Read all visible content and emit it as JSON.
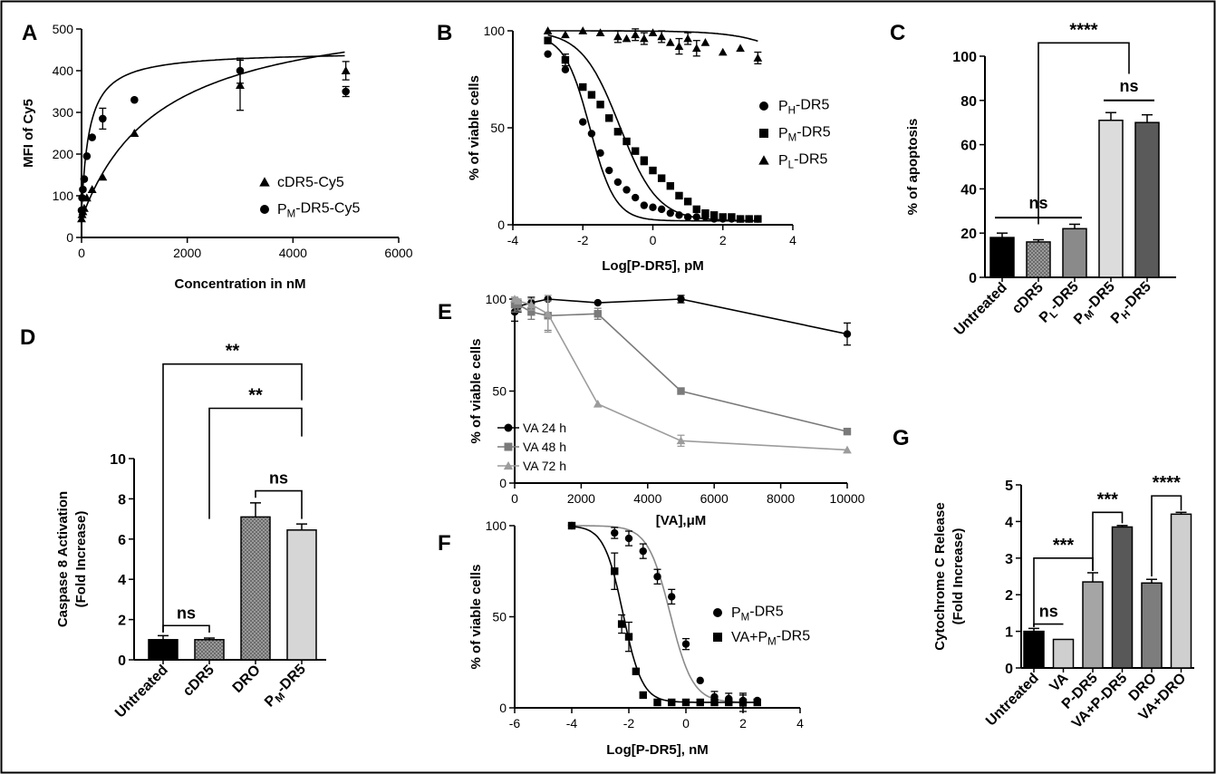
{
  "chart_data": [
    {
      "id": "A",
      "type": "scatter",
      "panel_letter": "A",
      "xlabel": "Concentration in nM",
      "ylabel": "MFI of Cy5",
      "xlim": [
        0,
        6000
      ],
      "ylim": [
        0,
        500
      ],
      "xticks": [
        0,
        2000,
        4000,
        6000
      ],
      "yticks": [
        0,
        100,
        200,
        300,
        400,
        500
      ],
      "legend_position": "right-middle",
      "series": [
        {
          "name": "cDR5-Cy5",
          "marker": "triangle",
          "x": [
            0,
            10,
            25,
            50,
            100,
            200,
            400,
            1000,
            3000,
            5000
          ],
          "y": [
            45,
            55,
            62,
            70,
            95,
            115,
            145,
            250,
            365,
            400
          ],
          "err": [
            0,
            0,
            0,
            0,
            0,
            0,
            0,
            0,
            60,
            22
          ],
          "fit": {
            "model": "one-site",
            "bmax": 520,
            "kd": 1500
          }
        },
        {
          "name": "PM-DR5-Cy5",
          "label_main": "P",
          "label_sub": "M",
          "label_rest": "-DR5-Cy5",
          "marker": "circle",
          "x": [
            0,
            10,
            25,
            50,
            100,
            200,
            400,
            1000,
            3000,
            5000
          ],
          "y": [
            65,
            95,
            115,
            140,
            195,
            240,
            285,
            330,
            400,
            350
          ],
          "err": [
            0,
            0,
            0,
            0,
            0,
            0,
            25,
            0,
            30,
            12
          ],
          "fit": {
            "model": "one-site",
            "bmax": 382,
            "kd": 150
          }
        }
      ]
    },
    {
      "id": "B",
      "type": "scatter",
      "panel_letter": "B",
      "xlabel": "Log[P-DR5], pM",
      "ylabel": "% of viable cells",
      "xlim": [
        -4,
        4
      ],
      "ylim": [
        0,
        100
      ],
      "xticks": [
        -4,
        -2,
        0,
        2,
        4
      ],
      "yticks": [
        0,
        50,
        100
      ],
      "legend_position": "right",
      "series": [
        {
          "name": "PH-DR5",
          "label_main": "P",
          "label_sub": "H",
          "label_rest": "-DR5",
          "marker": "circle",
          "x": [
            -3,
            -2.5,
            -2,
            -1.75,
            -1.5,
            -1.25,
            -1,
            -0.75,
            -0.5,
            -0.25,
            0,
            0.25,
            0.5,
            0.75,
            1,
            1.25,
            1.5,
            1.75,
            2,
            2.25,
            2.5,
            2.75,
            3
          ],
          "y": [
            88,
            80,
            53,
            47,
            37,
            28,
            22,
            18,
            14,
            10,
            9,
            8,
            6,
            5,
            4,
            4,
            4,
            3,
            3,
            3,
            3,
            3,
            3
          ],
          "fit": {
            "top": 98,
            "bottom": 2,
            "logec50": -1.8,
            "hill": 1.2
          }
        },
        {
          "name": "PM-DR5",
          "label_main": "P",
          "label_sub": "M",
          "label_rest": "-DR5",
          "marker": "square",
          "x": [
            -3,
            -2.5,
            -2,
            -1.75,
            -1.5,
            -1.25,
            -1,
            -0.75,
            -0.5,
            -0.25,
            0,
            0.25,
            0.5,
            0.75,
            1,
            1.25,
            1.5,
            1.75,
            2,
            2.25,
            2.5,
            2.75,
            3
          ],
          "y": [
            95,
            85,
            71,
            67,
            62,
            55,
            48,
            43,
            38,
            33,
            28,
            24,
            20,
            15,
            12,
            8,
            6,
            5,
            4,
            4,
            3,
            3,
            3
          ],
          "err": [
            0,
            3,
            0,
            0,
            0,
            0,
            0,
            0,
            0,
            2,
            0,
            0,
            0,
            0,
            0,
            0,
            0,
            0,
            0,
            0,
            0,
            0,
            0
          ],
          "fit": {
            "top": 100,
            "bottom": 2,
            "logec50": -0.95,
            "hill": 0.8
          }
        },
        {
          "name": "PL-DR5",
          "label_main": "P",
          "label_sub": "L",
          "label_rest": "-DR5",
          "marker": "triangle",
          "x": [
            -3,
            -2.5,
            -2,
            -1.5,
            -1,
            -0.75,
            -0.5,
            -0.25,
            0,
            0.25,
            0.5,
            0.75,
            1,
            1.25,
            1.5,
            2,
            2.5,
            3
          ],
          "y": [
            100,
            98,
            100,
            99,
            97,
            96,
            98,
            96,
            99,
            97,
            94,
            92,
            96,
            91,
            94,
            89,
            91,
            86
          ],
          "err": [
            0,
            0,
            0,
            0,
            3,
            0,
            3,
            3,
            0,
            3,
            0,
            4,
            3,
            4,
            0,
            0,
            0,
            3
          ],
          "fit": {
            "top": 100,
            "bottom": 0,
            "logec50": 5.5,
            "hill": 0.5
          }
        }
      ]
    },
    {
      "id": "C",
      "type": "bar",
      "panel_letter": "C",
      "ylabel": "% of apoptosis",
      "ylim": [
        0,
        100
      ],
      "yticks": [
        0,
        20,
        40,
        60,
        80,
        100
      ],
      "categories": [
        {
          "main": "Untreated",
          "sub": "",
          "rest": ""
        },
        {
          "main": "cDR5",
          "sub": "",
          "rest": ""
        },
        {
          "main": "P",
          "sub": "L",
          "rest": "-DR5"
        },
        {
          "main": "P",
          "sub": "M",
          "rest": "-DR5"
        },
        {
          "main": "P",
          "sub": "H",
          "rest": "-DR5"
        }
      ],
      "values": [
        18,
        16,
        22,
        71,
        70
      ],
      "errors": [
        2,
        1,
        2,
        3.5,
        3.5
      ],
      "colors": [
        "#000000",
        "#5f5f5f",
        "#8a8a8a",
        "#dcdcdc",
        "#5a5a5a"
      ],
      "hatch": [
        false,
        true,
        false,
        false,
        false
      ],
      "annotations": [
        {
          "text": "ns",
          "type": "line",
          "from": 0,
          "to": 2,
          "y": 27
        },
        {
          "text": "ns",
          "type": "line",
          "from": 3,
          "to": 4,
          "y": 80
        },
        {
          "text": "****",
          "type": "bracket",
          "from": 1,
          "to": 3.5,
          "y": 106,
          "left_drop": 24,
          "right_drop": 92
        }
      ]
    },
    {
      "id": "D",
      "type": "bar",
      "panel_letter": "D",
      "ylabel": "Caspase 8 Activation",
      "ylabel2": "(Fold Increase)",
      "ylim": [
        0,
        10
      ],
      "yticks": [
        0,
        2,
        4,
        6,
        8,
        10
      ],
      "categories": [
        {
          "main": "Untreated",
          "sub": "",
          "rest": ""
        },
        {
          "main": "cDR5",
          "sub": "",
          "rest": ""
        },
        {
          "main": "DRO",
          "sub": "",
          "rest": ""
        },
        {
          "main": "P",
          "sub": "M",
          "rest": "-DR5"
        }
      ],
      "values": [
        1.0,
        1.0,
        7.1,
        6.45
      ],
      "errors": [
        0.2,
        0.08,
        0.7,
        0.3
      ],
      "colors": [
        "#000000",
        "#8a8a8a",
        "#8c8c8c",
        "#d6d6d6"
      ],
      "hatch": [
        false,
        true,
        true,
        false
      ],
      "annotations": [
        {
          "text": "ns",
          "type": "bracket",
          "from": 0,
          "to": 1,
          "y": 1.7,
          "left_drop": 1.35,
          "right_drop": 1.35
        },
        {
          "text": "ns",
          "type": "bracket",
          "from": 2,
          "to": 3,
          "y": 8.4,
          "left_drop": 8.05,
          "right_drop": 7.0
        },
        {
          "text": "**",
          "type": "bracket",
          "from": 1,
          "to": 3,
          "y": 12.5,
          "left_drop": 7.0,
          "right_drop": 11.1
        },
        {
          "text": "**",
          "type": "bracket",
          "from": 0,
          "to": 3,
          "y": 14.7,
          "left_drop": 1.4,
          "right_drop": 12.9
        }
      ]
    },
    {
      "id": "E",
      "type": "line",
      "panel_letter": "E",
      "xlabel": "[VA],μM",
      "ylabel": "% of viable cells",
      "xlim": [
        0,
        10000
      ],
      "ylim": [
        0,
        100
      ],
      "xticks": [
        0,
        2000,
        4000,
        6000,
        8000,
        10000
      ],
      "yticks": [
        0,
        50,
        100
      ],
      "legend_position": "bottom-left",
      "series": [
        {
          "name": "VA 24 h",
          "marker": "circle",
          "color": "#000000",
          "x": [
            0,
            100,
            500,
            1000,
            2500,
            5000,
            10000
          ],
          "y": [
            93,
            96,
            98,
            100,
            98,
            100,
            81
          ],
          "err": [
            5,
            3,
            3,
            0,
            0,
            2,
            6
          ]
        },
        {
          "name": "VA 48 h",
          "marker": "square",
          "color": "#7a7a7a",
          "x": [
            0,
            100,
            500,
            1000,
            2500,
            5000,
            10000
          ],
          "y": [
            97,
            97,
            93,
            91,
            92,
            50,
            28
          ],
          "err": [
            4,
            3,
            4,
            8,
            3,
            0,
            0
          ]
        },
        {
          "name": "VA 72 h",
          "marker": "triangle",
          "color": "#9c9c9c",
          "x": [
            0,
            100,
            500,
            1000,
            2500,
            5000,
            10000
          ],
          "y": [
            100,
            99,
            97,
            92,
            43,
            23,
            18
          ],
          "err": [
            0,
            0,
            3,
            10,
            0,
            3,
            0
          ]
        }
      ]
    },
    {
      "id": "F",
      "type": "scatter",
      "panel_letter": "F",
      "xlabel": "Log[P-DR5], nM",
      "ylabel": "% of viable cells",
      "xlim": [
        -6,
        4
      ],
      "ylim": [
        0,
        100
      ],
      "xticks": [
        -6,
        -4,
        -2,
        0,
        2,
        4
      ],
      "yticks": [
        0,
        50,
        100
      ],
      "legend_position": "right",
      "series": [
        {
          "name": "PM-DR5",
          "label_main": "P",
          "label_sub": "M",
          "label_rest": "-DR5",
          "marker": "circle",
          "color": "#000000",
          "fit_color": "#8a8a8a",
          "x": [
            -4,
            -2.5,
            -2,
            -1.5,
            -1,
            -0.5,
            0,
            0.5,
            1,
            1.5,
            2,
            2.5
          ],
          "y": [
            100,
            96,
            93,
            86,
            72,
            61,
            35,
            15,
            6,
            5,
            4,
            4
          ],
          "err": [
            0,
            3,
            4,
            4,
            4,
            4,
            3,
            0,
            3,
            3,
            3,
            0
          ],
          "fit": {
            "top": 100,
            "bottom": 3,
            "logec50": -0.55,
            "hill": 1.1
          }
        },
        {
          "name": "VA+PM-DR5",
          "label_main": "VA+P",
          "label_sub": "M",
          "label_rest": "-DR5",
          "marker": "square",
          "color": "#000000",
          "fit_color": "#000000",
          "x": [
            -4,
            -2.5,
            -2.25,
            -2,
            -1.75,
            -1.5,
            -1,
            -0.5,
            0,
            0.5,
            1,
            1.5,
            2,
            2.5
          ],
          "y": [
            100,
            75,
            46,
            39,
            20,
            7,
            3,
            3,
            3,
            3,
            3,
            3,
            3,
            3
          ],
          "err": [
            0,
            10,
            5,
            8,
            0,
            0,
            0,
            0,
            0,
            0,
            0,
            0,
            5,
            0
          ],
          "fit": {
            "top": 100,
            "bottom": 3,
            "logec50": -2.2,
            "hill": 1.3
          }
        }
      ]
    },
    {
      "id": "G",
      "type": "bar",
      "panel_letter": "G",
      "ylabel": "Cytochrome C Release",
      "ylabel2": "(Fold Increase)",
      "ylim": [
        0,
        5
      ],
      "yticks": [
        0,
        1,
        2,
        3,
        4,
        5
      ],
      "categories": [
        {
          "main": "Untreated",
          "sub": "",
          "rest": ""
        },
        {
          "main": "VA",
          "sub": "",
          "rest": ""
        },
        {
          "main": "P-DR5",
          "sub": "",
          "rest": ""
        },
        {
          "main": "VA+P-DR5",
          "sub": "",
          "rest": ""
        },
        {
          "main": "DRO",
          "sub": "",
          "rest": ""
        },
        {
          "main": "VA+DRO",
          "sub": "",
          "rest": ""
        }
      ],
      "values": [
        1.0,
        0.78,
        2.35,
        3.85,
        2.32,
        4.2
      ],
      "errors": [
        0.08,
        0,
        0.25,
        0.04,
        0.1,
        0.05
      ],
      "colors": [
        "#000000",
        "#cfcfcf",
        "#a5a5a5",
        "#585858",
        "#7d7d7d",
        "#cfcfcf"
      ],
      "hatch": [
        false,
        false,
        false,
        false,
        false,
        false
      ],
      "annotations": [
        {
          "text": "ns",
          "type": "bracket",
          "from": 0,
          "to": 1,
          "y": 1.2,
          "left_drop": 1.12,
          "right_drop": 1.2
        },
        {
          "text": "***",
          "type": "bracket",
          "from": 0,
          "to": 2,
          "y": 3.0,
          "left_drop": 1.12,
          "right_drop": 2.65
        },
        {
          "text": "***",
          "type": "bracket",
          "from": 2,
          "to": 3,
          "y": 4.25,
          "left_drop": 2.65,
          "right_drop": 3.95
        },
        {
          "text": "****",
          "type": "bracket",
          "from": 4,
          "to": 5,
          "y": 4.7,
          "left_drop": 2.5,
          "right_drop": 4.3
        }
      ]
    }
  ]
}
